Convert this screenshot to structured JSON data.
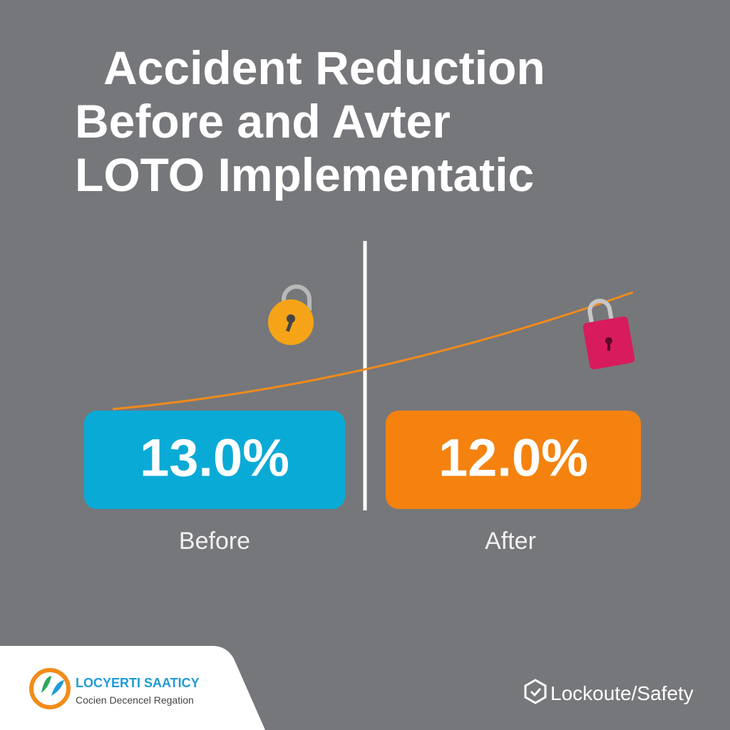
{
  "header": {
    "title_lines": [
      "Accident Reduction",
      "Before and Avter",
      "LOTO Implementatic"
    ]
  },
  "panels": [
    {
      "value": "13.0%",
      "label": "Before"
    },
    {
      "value": "12.0%",
      "label": "After"
    }
  ],
  "footer": {
    "brand": {
      "name": "LOCYERTI SAATICY",
      "tagline": "Cocien Decencel Regation"
    },
    "tag": "Lockoute/Safety"
  }
}
